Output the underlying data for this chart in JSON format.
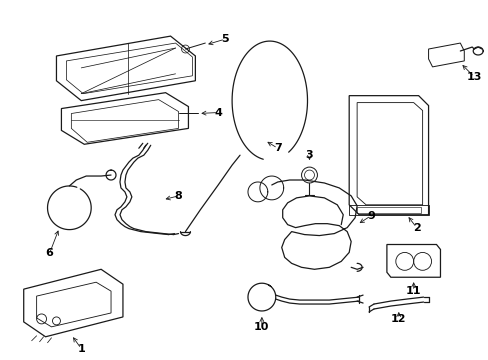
{
  "background_color": "#ffffff",
  "line_color": "#1a1a1a",
  "text_color": "#000000",
  "fig_width": 4.89,
  "fig_height": 3.6,
  "dpi": 100
}
